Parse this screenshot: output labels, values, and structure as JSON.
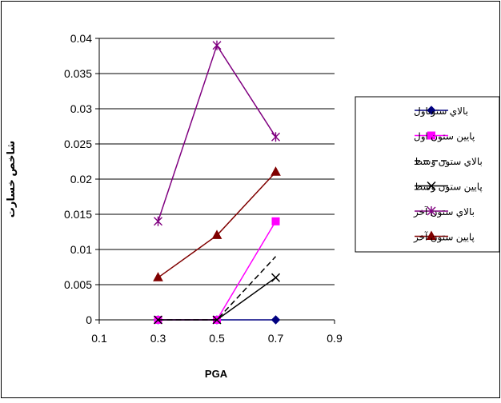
{
  "chart_data": {
    "type": "line",
    "xlabel": "PGA",
    "ylabel": "شاخص خسارت",
    "xlim": [
      0.1,
      0.9
    ],
    "ylim": [
      0,
      0.04
    ],
    "x_ticks": [
      "0.1",
      "0.3",
      "0.5",
      "0.7",
      "0.9"
    ],
    "y_ticks": [
      "0",
      "0.005",
      "0.01",
      "0.015",
      "0.02",
      "0.025",
      "0.03",
      "0.035",
      "0.04"
    ],
    "x": [
      0.3,
      0.5,
      0.7
    ],
    "grid": "horizontal",
    "legend_position": "right",
    "series": [
      {
        "name": "بالاي ستوناول",
        "values": [
          0,
          0,
          0
        ],
        "color": "#000080",
        "marker": "diamond",
        "dash": "solid"
      },
      {
        "name": "پايين ستون اول",
        "values": [
          0,
          0,
          0.014
        ],
        "color": "#FF00FF",
        "marker": "square",
        "dash": "solid"
      },
      {
        "name": "بالاي ستون وسط",
        "values": [
          0,
          0,
          0.009
        ],
        "color": "#000000",
        "marker": "none",
        "dash": "dashed"
      },
      {
        "name": "پايين ستون وسط",
        "values": [
          0,
          0,
          0.006
        ],
        "color": "#000000",
        "marker": "x",
        "dash": "solid"
      },
      {
        "name": "بالاي ستون آخر",
        "values": [
          0.014,
          0.039,
          0.026
        ],
        "color": "#800080",
        "marker": "star",
        "dash": "solid"
      },
      {
        "name": "پايين ستون آخر",
        "values": [
          0.006,
          0.012,
          0.021
        ],
        "color": "#800000",
        "marker": "triangle",
        "dash": "solid"
      }
    ]
  }
}
